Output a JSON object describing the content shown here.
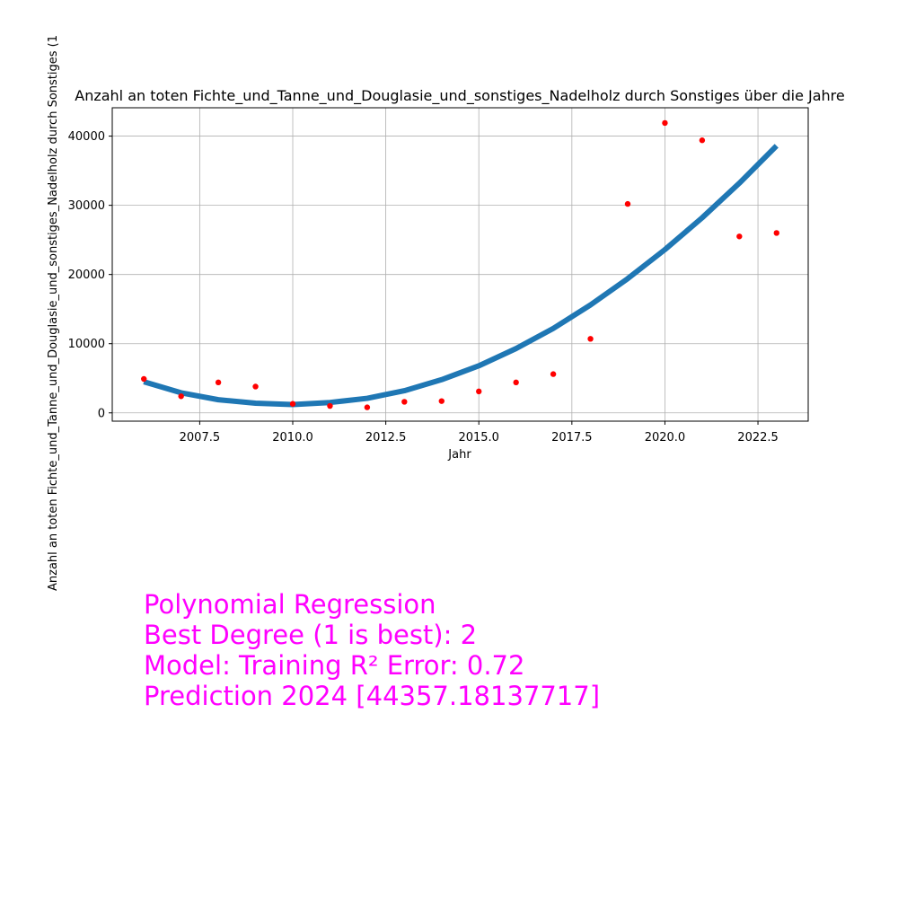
{
  "chart_data": {
    "type": "scatter",
    "title": "Anzahl an toten Fichte_und_Tanne_und_Douglasie_und_sonstiges_Nadelholz durch Sonstiges über die Jahre",
    "xlabel": "Jahr",
    "ylabel": "Anzahl an toten Fichte_und_Tanne_und_Douglasie_und_sonstiges_Nadelholz durch Sonstiges (1",
    "xlim": [
      2005.15,
      2023.85
    ],
    "ylim": [
      -1200,
      44100
    ],
    "x_ticks": [
      2007.5,
      2010.0,
      2012.5,
      2015.0,
      2017.5,
      2020.0,
      2022.5
    ],
    "x_tick_labels": [
      "2007.5",
      "2010.0",
      "2012.5",
      "2015.0",
      "2017.5",
      "2020.0",
      "2022.5"
    ],
    "y_ticks": [
      0,
      10000,
      20000,
      30000,
      40000
    ],
    "y_tick_labels": [
      "0",
      "10000",
      "20000",
      "30000",
      "40000"
    ],
    "grid": true,
    "series": [
      {
        "kind": "scatter",
        "color": "#ff0000",
        "x": [
          2006,
          2007,
          2008,
          2009,
          2010,
          2011,
          2012,
          2013,
          2014,
          2015,
          2016,
          2017,
          2018,
          2019,
          2020,
          2021,
          2022,
          2023
        ],
        "y": [
          4900,
          2400,
          4400,
          3800,
          1300,
          1000,
          800,
          1600,
          1700,
          3100,
          4400,
          5600,
          10700,
          30200,
          41900,
          39400,
          25500,
          26000
        ]
      },
      {
        "kind": "line",
        "color": "#1f77b4",
        "x": [
          2006,
          2007,
          2008,
          2009,
          2010,
          2011,
          2012,
          2013,
          2014,
          2015,
          2016,
          2017,
          2018,
          2019,
          2020,
          2021,
          2022,
          2023
        ],
        "y": [
          4500,
          2900,
          1900,
          1400,
          1200,
          1500,
          2100,
          3200,
          4800,
          6800,
          9300,
          12200,
          15600,
          19400,
          23600,
          28200,
          33200,
          38600
        ]
      }
    ]
  },
  "annotation": {
    "line1": "Polynomial Regression",
    "line2": "Best Degree (1 is best): 2",
    "line3": "Model: Training R² Error: 0.72",
    "line4": "Prediction 2024 [44357.18137717]"
  }
}
